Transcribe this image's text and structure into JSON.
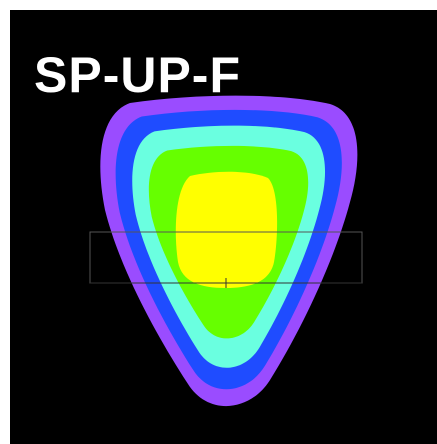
{
  "label": "SP-UP-F"
}
